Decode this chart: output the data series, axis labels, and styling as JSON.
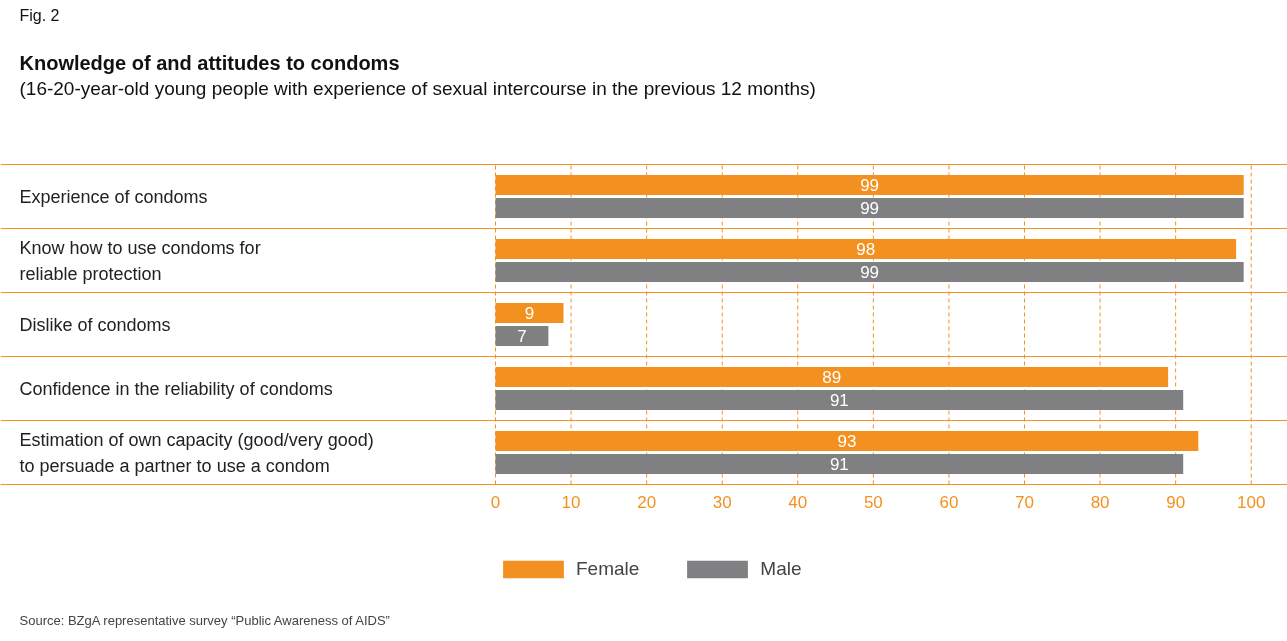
{
  "chart_data": {
    "type": "bar",
    "orientation": "horizontal",
    "title": "Knowledge of and attitudes to condoms",
    "subtitle": "(16-20-year-old young people with experience of sexual intercourse in the previous 12 months)",
    "annotations": [
      "Fig. 2",
      "Source: BZgA representative survey “Public Awareness of AIDS”"
    ],
    "categories": [
      "Experience of condoms",
      "Know how to use condoms for\nreliable protection",
      "Dislike of condoms",
      "Confidence in the reliability of condoms",
      "Estimation of own capacity (good/very good)\nto persuade a partner to use a condom"
    ],
    "series": [
      {
        "name": "Female",
        "color": "#f39120",
        "values": [
          99,
          98,
          9,
          89,
          93
        ]
      },
      {
        "name": "Male",
        "color": "#808083",
        "values": [
          99,
          99,
          7,
          91,
          91
        ]
      }
    ],
    "xlim": [
      0,
      104.8
    ],
    "xticks": [
      0,
      10,
      20,
      30,
      40,
      50,
      60,
      70,
      80,
      90,
      100
    ],
    "grid": "x",
    "legend": "bottom left",
    "data_labels": true
  }
}
